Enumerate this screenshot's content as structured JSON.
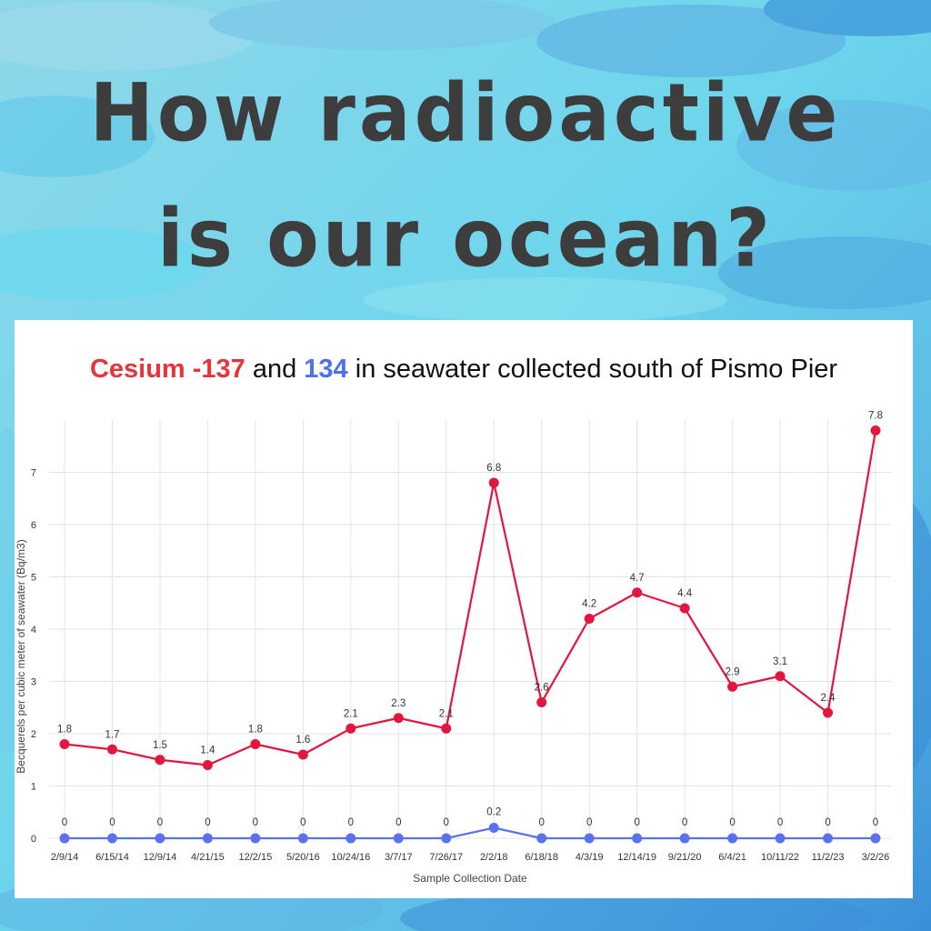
{
  "headline": {
    "line1": "How radioactive",
    "line2": "is our ocean?"
  },
  "chart_data": {
    "type": "line",
    "title": {
      "part1": "Cesium -137",
      "part2": " and ",
      "part3": "134",
      "part4": " in seawater collected south of Pismo Pier"
    },
    "xlabel": "Sample Collection Date",
    "ylabel": "Becquerels per cubic meter of seawater (Bq/m3)",
    "ylim": [
      0,
      8
    ],
    "yticks": [
      0,
      1,
      2,
      3,
      4,
      5,
      6,
      7
    ],
    "grid": true,
    "categories": [
      "2/9/14",
      "6/15/14",
      "12/9/14",
      "4/21/15",
      "12/2/15",
      "5/20/16",
      "10/24/16",
      "3/7/17",
      "7/26/17",
      "2/2/18",
      "6/18/18",
      "4/3/19",
      "12/14/19",
      "9/21/20",
      "6/4/21",
      "10/11/22",
      "11/2/23",
      "3/2/26"
    ],
    "series": [
      {
        "key": "cs137",
        "color": "#e3163f",
        "values": [
          1.8,
          1.7,
          1.5,
          1.4,
          1.8,
          1.6,
          2.1,
          2.3,
          2.1,
          6.8,
          2.6,
          4.2,
          4.7,
          4.4,
          2.9,
          3.1,
          2.4,
          7.8
        ]
      },
      {
        "key": "cs134",
        "color": "#5b72f0",
        "values": [
          0,
          0,
          0,
          0,
          0,
          0,
          0,
          0,
          0,
          0.2,
          0,
          0,
          0,
          0,
          0,
          0,
          0,
          0
        ]
      }
    ]
  },
  "colors": {
    "headline": "#3d3d3d",
    "title_red": "#e8333c",
    "title_blue": "#4d6ff2",
    "ocean_light": "#6fd3ec",
    "ocean_dark": "#2f86d6"
  }
}
